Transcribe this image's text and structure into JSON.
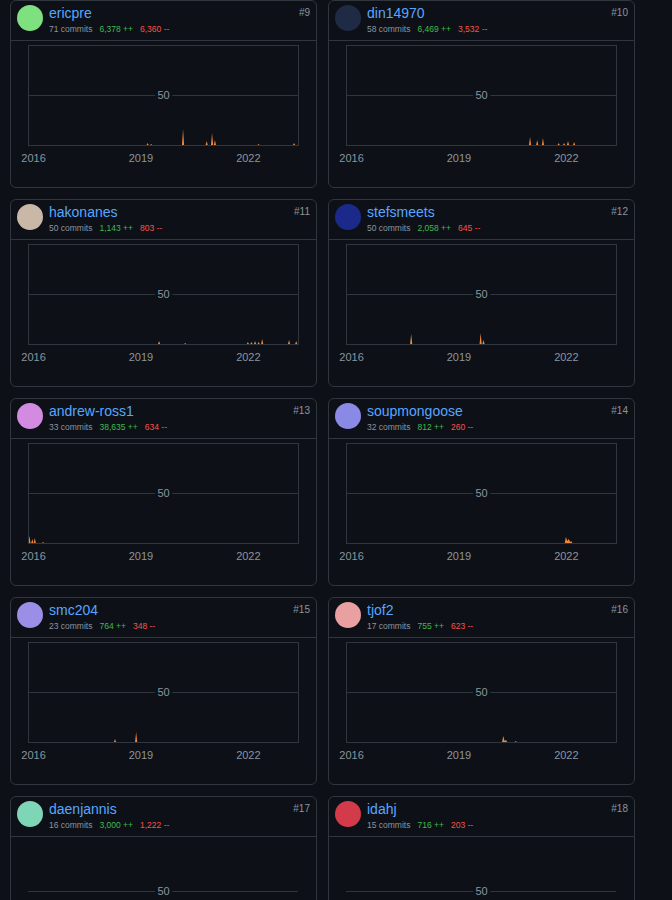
{
  "chart_data": [
    {
      "type": "area",
      "title": "ericpre",
      "subtitle": [
        "71 commits",
        "6,378 ++",
        "6,360 --"
      ],
      "annotations": [
        "#9"
      ],
      "x": [
        2019.17,
        2019.2,
        2019.23,
        2019.27,
        2019.3,
        2019.33,
        2020.16,
        2020.19,
        2020.22,
        2020.82,
        2020.85,
        2020.88,
        2020.97,
        2021.0,
        2021.03,
        2021.05,
        2021.08,
        2021.11,
        2022.27,
        2022.3,
        2022.33,
        2023.26,
        2023.29,
        2023.32
      ],
      "values": [
        0,
        2,
        0,
        0,
        1,
        0,
        0,
        16,
        0,
        0,
        4,
        0,
        0,
        12,
        0,
        0,
        5,
        0,
        0,
        1,
        0,
        0,
        2,
        0
      ],
      "xlim": [
        2015.86,
        2023.4
      ],
      "xticks": [
        2016,
        2019,
        2022
      ],
      "ylim": [
        0,
        100
      ],
      "yticks": [
        50
      ],
      "color": "#f0883e",
      "grid": true
    },
    {
      "type": "area",
      "title": "din14970",
      "subtitle": [
        "58 commits",
        "6,469 ++",
        "3,532 --"
      ],
      "annotations": [
        "#10"
      ],
      "x": [
        2020.97,
        2021.0,
        2021.03,
        2021.17,
        2021.2,
        2021.23,
        2021.33,
        2021.36,
        2021.39,
        2021.77,
        2021.8,
        2021.83,
        2021.92,
        2021.95,
        2021.98,
        2022.03,
        2022.06,
        2022.09,
        2022.2,
        2022.23,
        2022.26
      ],
      "values": [
        0,
        8,
        0,
        0,
        5,
        0,
        0,
        7,
        0,
        0,
        2,
        0,
        0,
        2,
        0,
        0,
        4,
        0,
        0,
        3,
        0
      ],
      "xlim": [
        2015.86,
        2023.4
      ],
      "xticks": [
        2016,
        2019,
        2022
      ],
      "ylim": [
        0,
        100
      ],
      "yticks": [
        50
      ],
      "color": "#f0883e",
      "grid": true
    },
    {
      "type": "area",
      "title": "hakonanes",
      "subtitle": [
        "50 commits",
        "1,143 ++",
        "803 --"
      ],
      "annotations": [
        "#11"
      ],
      "x": [
        2019.49,
        2019.52,
        2019.55,
        2020.22,
        2020.25,
        2020.28,
        2021.97,
        2022.0,
        2022.03,
        2022.07,
        2022.1,
        2022.13,
        2022.17,
        2022.2,
        2022.23,
        2022.27,
        2022.3,
        2022.33,
        2022.37,
        2022.4,
        2022.43,
        2023.12,
        2023.15,
        2023.18,
        2023.32,
        2023.35,
        2023.38
      ],
      "values": [
        0,
        3,
        0,
        0,
        1,
        0,
        0,
        2,
        0,
        0,
        2,
        0,
        0,
        3,
        0,
        0,
        2,
        0,
        0,
        5,
        0,
        0,
        4,
        0,
        0,
        3,
        0
      ],
      "xlim": [
        2015.86,
        2023.4
      ],
      "xticks": [
        2016,
        2019,
        2022
      ],
      "ylim": [
        0,
        100
      ],
      "yticks": [
        50
      ],
      "color": "#f0883e",
      "grid": true
    },
    {
      "type": "area",
      "title": "stefsmeets",
      "subtitle": [
        "50 commits",
        "2,058 ++",
        "645 --"
      ],
      "annotations": [
        "#12"
      ],
      "x": [
        2017.65,
        2017.68,
        2017.71,
        2019.59,
        2019.62,
        2019.65,
        2019.67,
        2019.7,
        2019.73
      ],
      "values": [
        0,
        10,
        0,
        0,
        11,
        0,
        0,
        4,
        0
      ],
      "xlim": [
        2015.86,
        2023.4
      ],
      "xticks": [
        2016,
        2019,
        2022
      ],
      "ylim": [
        0,
        100
      ],
      "yticks": [
        50
      ],
      "color": "#f0883e",
      "grid": true
    },
    {
      "type": "area",
      "title": "andrew-ross1",
      "subtitle": [
        "33 commits",
        "38,635 ++",
        "634 --"
      ],
      "annotations": [
        "#13"
      ],
      "x": [
        2015.87,
        2015.9,
        2015.93,
        2015.95,
        2015.98,
        2016.01,
        2016.02,
        2016.05,
        2016.08,
        2016.25,
        2016.28,
        2016.31
      ],
      "values": [
        0,
        7,
        0,
        0,
        4,
        0,
        0,
        5,
        0,
        0,
        1,
        0
      ],
      "xlim": [
        2015.86,
        2023.4
      ],
      "xticks": [
        2016,
        2019,
        2022
      ],
      "ylim": [
        0,
        100
      ],
      "yticks": [
        50
      ],
      "color": "#f0883e",
      "grid": true
    },
    {
      "type": "area",
      "title": "soupmongoose",
      "subtitle": [
        "32 commits",
        "812 ++",
        "260 --"
      ],
      "annotations": [
        "#14"
      ],
      "x": [
        2021.97,
        2022.0,
        2022.04,
        2022.08,
        2022.12,
        2022.15,
        2022.18
      ],
      "values": [
        0,
        6,
        2,
        4,
        1,
        2,
        0
      ],
      "xlim": [
        2015.86,
        2023.4
      ],
      "xticks": [
        2016,
        2019,
        2022
      ],
      "ylim": [
        0,
        100
      ],
      "yticks": [
        50
      ],
      "color": "#f0883e",
      "grid": true
    },
    {
      "type": "area",
      "title": "smc204",
      "subtitle": [
        "23 commits",
        "764 ++",
        "348 --"
      ],
      "annotations": [
        "#15"
      ],
      "x": [
        2018.26,
        2018.29,
        2018.32,
        2018.85,
        2018.88,
        2018.91
      ],
      "values": [
        0,
        3,
        0,
        0,
        10,
        0
      ],
      "xlim": [
        2015.86,
        2023.4
      ],
      "xticks": [
        2016,
        2019,
        2022
      ],
      "ylim": [
        0,
        100
      ],
      "yticks": [
        50
      ],
      "color": "#f0883e",
      "grid": true
    },
    {
      "type": "area",
      "title": "tjof2",
      "subtitle": [
        "17 commits",
        "755 ++",
        "623 --"
      ],
      "annotations": [
        "#16"
      ],
      "x": [
        2020.22,
        2020.25,
        2020.29,
        2020.33,
        2020.36,
        2020.57,
        2020.6,
        2020.63
      ],
      "values": [
        0,
        6,
        1,
        2,
        0,
        0,
        1,
        0
      ],
      "xlim": [
        2015.86,
        2023.4
      ],
      "xticks": [
        2016,
        2019,
        2022
      ],
      "ylim": [
        0,
        100
      ],
      "yticks": [
        50
      ],
      "color": "#f0883e",
      "grid": true
    },
    {
      "type": "area",
      "title": "daenjannis",
      "subtitle": [
        "16 commits",
        "3,000 ++",
        "1,222 --"
      ],
      "annotations": [
        "#17"
      ],
      "x": [],
      "values": [],
      "ylim": [
        0,
        100
      ],
      "yticks": [
        50
      ],
      "color": "#f0883e",
      "grid": true,
      "tick_labels": "y"
    },
    {
      "type": "area",
      "title": "idahj",
      "subtitle": [
        "15 commits",
        "716 ++",
        "203 --"
      ],
      "annotations": [
        "#18"
      ],
      "x": [],
      "values": [],
      "ylim": [
        0,
        100
      ],
      "yticks": [
        50
      ],
      "color": "#f0883e",
      "grid": true,
      "tick_labels": "y"
    }
  ]
}
